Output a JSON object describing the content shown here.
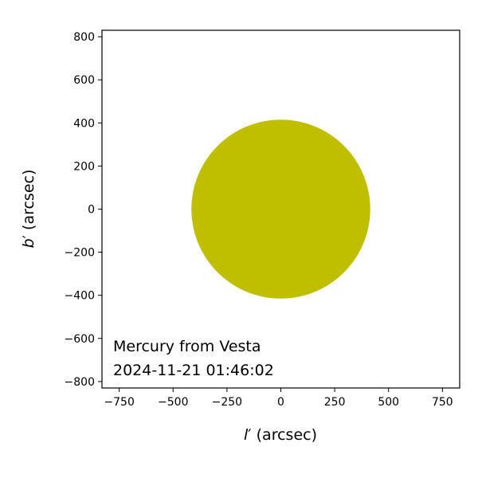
{
  "chart_data": {
    "type": "scatter",
    "title": "",
    "xlabel_var": "l",
    "xlabel_prime": "′",
    "xlabel_unit": " (arcsec)",
    "ylabel_var": "b",
    "ylabel_prime": "′",
    "ylabel_unit": " (arcsec)",
    "xlim": [
      -830,
      830
    ],
    "ylim": [
      -830,
      830
    ],
    "x_ticks": [
      -750,
      -500,
      -250,
      0,
      250,
      500,
      750
    ],
    "x_tick_labels": [
      "−750",
      "−500",
      "−250",
      "0",
      "250",
      "500",
      "750"
    ],
    "y_ticks": [
      -800,
      -600,
      -400,
      -200,
      0,
      200,
      400,
      600,
      800
    ],
    "y_tick_labels": [
      "−800",
      "−600",
      "−400",
      "−200",
      "0",
      "200",
      "400",
      "600",
      "800"
    ],
    "grid": false,
    "disk": {
      "center": [
        0,
        0
      ],
      "radius": 415,
      "color": "#bfbf00"
    },
    "annotation": [
      "Mercury from Vesta",
      "2024-11-21 01:46:02"
    ]
  }
}
